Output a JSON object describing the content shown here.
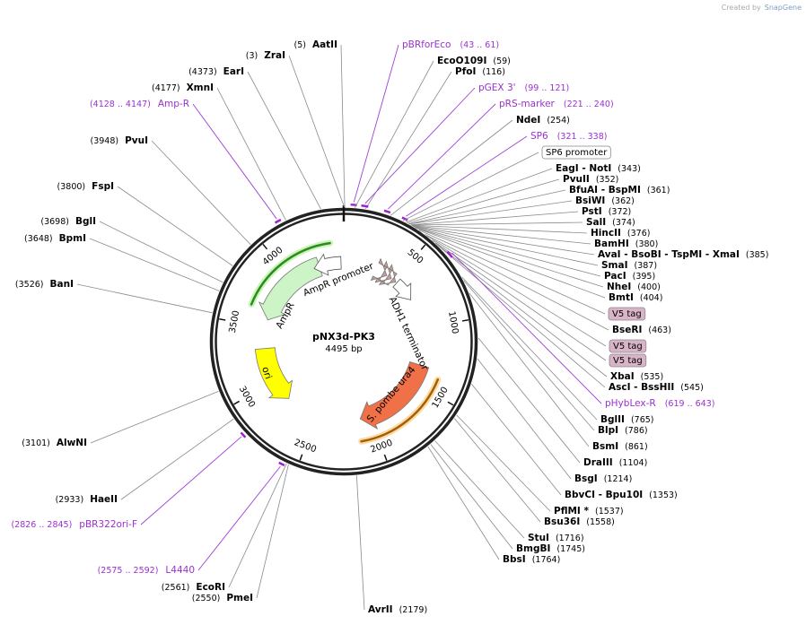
{
  "watermark": {
    "prefix": "Created by",
    "brand": "SnapGene"
  },
  "map": {
    "name": "pNX3d-PK3",
    "length": {
      "value": 4495,
      "label": "4495 bp"
    },
    "ticks": [
      500,
      1000,
      1500,
      2000,
      2500,
      3000,
      3500,
      4000
    ]
  },
  "features": [
    {
      "name": "AmpR promoter"
    },
    {
      "name": "AmpR"
    },
    {
      "name": "ori"
    },
    {
      "name": "ADH1 terminator"
    },
    {
      "name": "S. pombe ura4"
    }
  ],
  "labels": [
    {
      "name": "AatII",
      "site": {
        "value": 5,
        "label": "(5)"
      }
    },
    {
      "name": "ZraI",
      "site": {
        "value": 3,
        "label": "(3)"
      }
    },
    {
      "name": "EarI",
      "site": {
        "value": 4373,
        "label": "(4373)"
      }
    },
    {
      "name": "XmnI",
      "site": {
        "value": 4177,
        "label": "(4177)"
      }
    },
    {
      "name": "Amp-R",
      "range": {
        "start": 4128,
        "end": 4147,
        "label": "(4128 .. 4147)"
      }
    },
    {
      "name": "PvuI",
      "site": {
        "value": 3948,
        "label": "(3948)"
      }
    },
    {
      "name": "FspI",
      "site": {
        "value": 3800,
        "label": "(3800)"
      }
    },
    {
      "name": "BglI",
      "site": {
        "value": 3698,
        "label": "(3698)"
      }
    },
    {
      "name": "BpmI",
      "site": {
        "value": 3648,
        "label": "(3648)"
      }
    },
    {
      "name": "BanI",
      "site": {
        "value": 3526,
        "label": "(3526)"
      }
    },
    {
      "name": "AlwNI",
      "site": {
        "value": 3101,
        "label": "(3101)"
      }
    },
    {
      "name": "HaeII",
      "site": {
        "value": 2933,
        "label": "(2933)"
      }
    },
    {
      "name": "pBR322ori-F",
      "range": {
        "start": 2826,
        "end": 2845,
        "label": "(2826 .. 2845)"
      }
    },
    {
      "name": "L4440",
      "range": {
        "start": 2575,
        "end": 2592,
        "label": "(2575 .. 2592)"
      }
    },
    {
      "name": "EcoRI",
      "site": {
        "value": 2561,
        "label": "(2561)"
      }
    },
    {
      "name": "PmeI",
      "site": {
        "value": 2550,
        "label": "(2550)"
      }
    },
    {
      "name": "AvrII",
      "site": {
        "value": 2179,
        "label": "(2179)"
      }
    },
    {
      "name": "pBRforEco",
      "range": {
        "start": 43,
        "end": 61,
        "label": "(43 .. 61)"
      }
    },
    {
      "name": "EcoO109I",
      "site": {
        "value": 59,
        "label": "(59)"
      }
    },
    {
      "name": "PfoI",
      "site": {
        "value": 116,
        "label": "(116)"
      }
    },
    {
      "name": "pGEX 3'",
      "range": {
        "start": 99,
        "end": 121,
        "label": "(99 .. 121)"
      }
    },
    {
      "name": "pRS-marker",
      "range": {
        "start": 221,
        "end": 240,
        "label": "(221 .. 240)"
      }
    },
    {
      "name": "NdeI",
      "site": {
        "value": 254,
        "label": "(254)"
      }
    },
    {
      "name": "SP6",
      "range": {
        "start": 321,
        "end": 338,
        "label": "(321 .. 338)"
      }
    },
    {
      "feature": "SP6 promoter"
    },
    {
      "name": "EagI  - NotI",
      "site": {
        "value": 343,
        "label": "(343)"
      }
    },
    {
      "name": "PvuII",
      "site": {
        "value": 352,
        "label": "(352)"
      }
    },
    {
      "name": "BfuAI  - BspMI",
      "site": {
        "value": 361,
        "label": "(361)"
      }
    },
    {
      "name": "BsiWI",
      "site": {
        "value": 362,
        "label": "(362)"
      }
    },
    {
      "name": "PstI",
      "site": {
        "value": 372,
        "label": "(372)"
      }
    },
    {
      "name": "SalI",
      "site": {
        "value": 374,
        "label": "(374)"
      }
    },
    {
      "name": "HincII",
      "site": {
        "value": 376,
        "label": "(376)"
      }
    },
    {
      "name": "BamHI",
      "site": {
        "value": 380,
        "label": "(380)"
      }
    },
    {
      "name": "AvaI  - BsoBI  - TspMI  - XmaI",
      "site": {
        "value": 385,
        "label": "(385)"
      }
    },
    {
      "name": "SmaI",
      "site": {
        "value": 387,
        "label": "(387)"
      }
    },
    {
      "name": "PacI",
      "site": {
        "value": 395,
        "label": "(395)"
      }
    },
    {
      "name": "NheI",
      "site": {
        "value": 400,
        "label": "(400)"
      }
    },
    {
      "name": "BmtI",
      "site": {
        "value": 404,
        "label": "(404)"
      }
    },
    {
      "feature": "V5 tag"
    },
    {
      "name": "BseRI",
      "site": {
        "value": 463,
        "label": "(463)"
      }
    },
    {
      "feature": "V5 tag"
    },
    {
      "feature": "V5 tag"
    },
    {
      "name": "XbaI",
      "site": {
        "value": 535,
        "label": "(535)"
      }
    },
    {
      "name": "AscI  - BssHII",
      "site": {
        "value": 545,
        "label": "(545)"
      }
    },
    {
      "name": "pHybLex-R",
      "range": {
        "start": 619,
        "end": 643,
        "label": "(619 .. 643)"
      }
    },
    {
      "name": "BglII",
      "site": {
        "value": 765,
        "label": "(765)"
      }
    },
    {
      "name": "BlpI",
      "site": {
        "value": 786,
        "label": "(786)"
      }
    },
    {
      "name": "BsmI",
      "site": {
        "value": 861,
        "label": "(861)"
      }
    },
    {
      "name": "DraIII",
      "site": {
        "value": 1104,
        "label": "(1104)"
      }
    },
    {
      "name": "BsgI",
      "site": {
        "value": 1214,
        "label": "(1214)"
      }
    },
    {
      "name": "BbvCI  - Bpu10I",
      "site": {
        "value": 1353,
        "label": "(1353)"
      }
    },
    {
      "name": "PflMI *",
      "site": {
        "value": 1537,
        "label": "(1537)"
      }
    },
    {
      "name": "Bsu36I",
      "site": {
        "value": 1558,
        "label": "(1558)"
      }
    },
    {
      "name": "StuI",
      "site": {
        "value": 1716,
        "label": "(1716)"
      }
    },
    {
      "name": "BmgBI",
      "site": {
        "value": 1745,
        "label": "(1745)"
      }
    },
    {
      "name": "BbsI",
      "site": {
        "value": 1764,
        "label": "(1764)"
      }
    }
  ]
}
